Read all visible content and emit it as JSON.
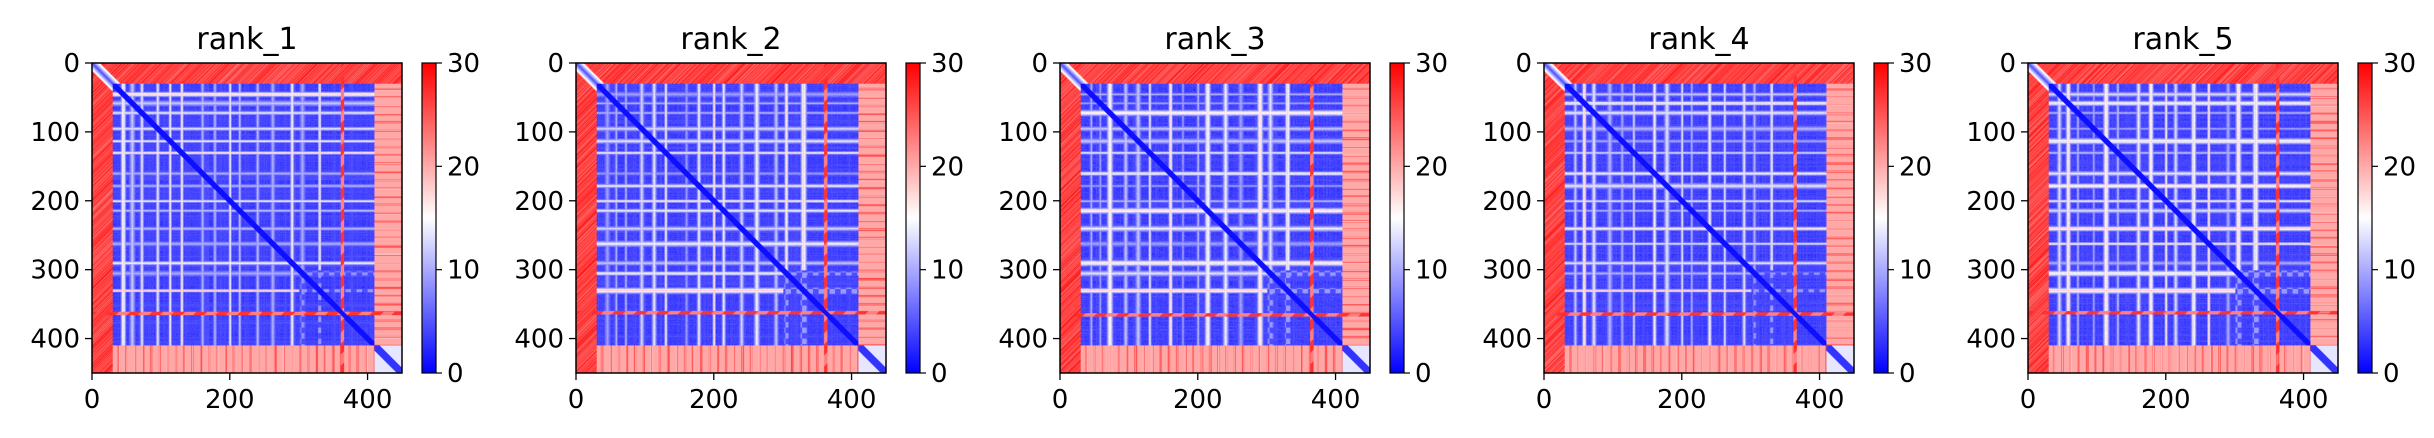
{
  "chart_data": [
    {
      "type": "heatmap",
      "title": "rank_1",
      "xlabel": "",
      "ylabel": "",
      "x_ticks": [
        0,
        200,
        400
      ],
      "y_ticks": [
        0,
        100,
        200,
        300,
        400
      ],
      "xlim": [
        0,
        450
      ],
      "ylim": [
        450,
        0
      ],
      "colorbar": {
        "ticks": [
          0,
          10,
          20,
          30
        ],
        "range": [
          0,
          30
        ],
        "colormap": "bwr"
      },
      "matrix_size": 450,
      "strong_row_band": 363
    },
    {
      "type": "heatmap",
      "title": "rank_2",
      "xlabel": "",
      "ylabel": "",
      "x_ticks": [
        0,
        200,
        400
      ],
      "y_ticks": [
        0,
        100,
        200,
        300,
        400
      ],
      "xlim": [
        0,
        450
      ],
      "ylim": [
        450,
        0
      ],
      "colorbar": {
        "ticks": [
          0,
          10,
          20,
          30
        ],
        "range": [
          0,
          30
        ],
        "colormap": "bwr"
      },
      "matrix_size": 450,
      "strong_row_band": 362
    },
    {
      "type": "heatmap",
      "title": "rank_3",
      "xlabel": "",
      "ylabel": "",
      "x_ticks": [
        0,
        200,
        400
      ],
      "y_ticks": [
        0,
        100,
        200,
        300,
        400
      ],
      "xlim": [
        0,
        450
      ],
      "ylim": [
        450,
        0
      ],
      "colorbar": {
        "ticks": [
          0,
          10,
          20,
          30
        ],
        "range": [
          0,
          30
        ],
        "colormap": "bwr"
      },
      "matrix_size": 450,
      "strong_row_band": 365
    },
    {
      "type": "heatmap",
      "title": "rank_4",
      "xlabel": "",
      "ylabel": "",
      "x_ticks": [
        0,
        200,
        400
      ],
      "y_ticks": [
        0,
        100,
        200,
        300,
        400
      ],
      "xlim": [
        0,
        450
      ],
      "ylim": [
        450,
        0
      ],
      "colorbar": {
        "ticks": [
          0,
          10,
          20,
          30
        ],
        "range": [
          0,
          30
        ],
        "colormap": "bwr"
      },
      "matrix_size": 450,
      "strong_row_band": 364
    },
    {
      "type": "heatmap",
      "title": "rank_5",
      "xlabel": "",
      "ylabel": "",
      "x_ticks": [
        0,
        200,
        400
      ],
      "y_ticks": [
        0,
        100,
        200,
        300,
        400
      ],
      "xlim": [
        0,
        450
      ],
      "ylim": [
        450,
        0
      ],
      "colorbar": {
        "ticks": [
          0,
          10,
          20,
          30
        ],
        "range": [
          0,
          30
        ],
        "colormap": "bwr"
      },
      "matrix_size": 450,
      "strong_row_band": 362
    }
  ]
}
